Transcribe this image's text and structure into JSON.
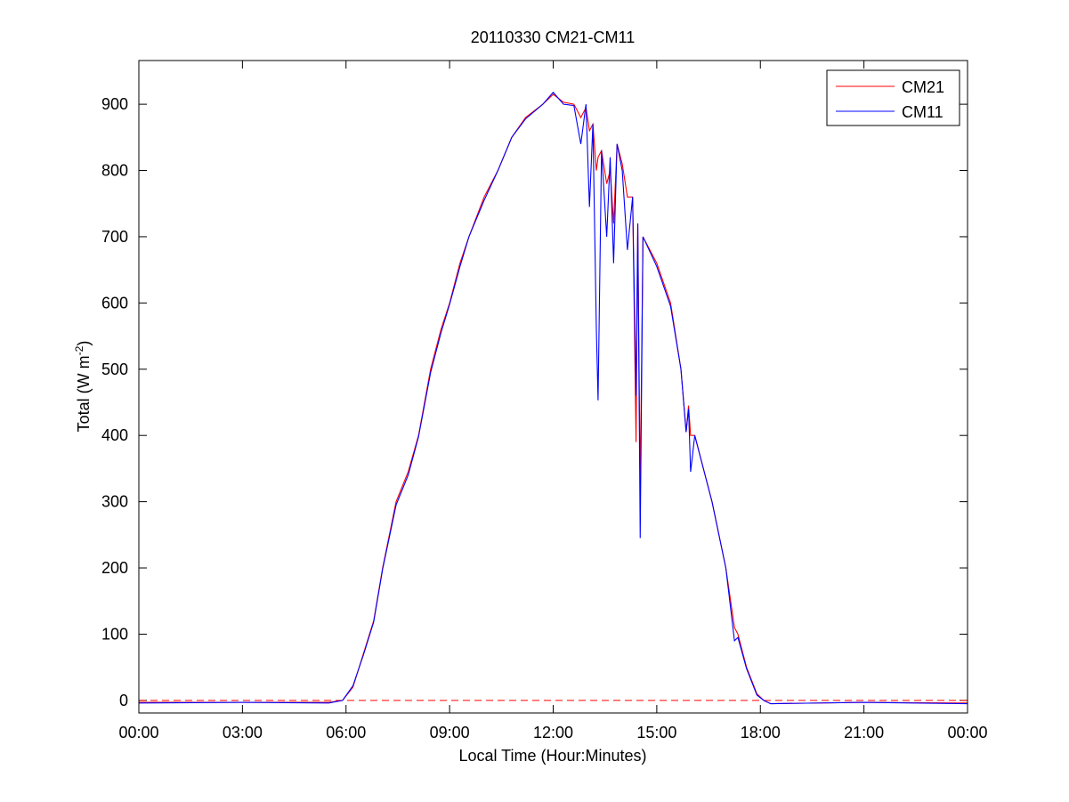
{
  "chart_data": {
    "type": "line",
    "title": "20110330 CM21-CM11",
    "xlabel": "Local Time (Hour:Minutes)",
    "ylabel": "Total (W m",
    "ylabel_superscript": "-2",
    "ylabel_end": ")",
    "x": [
      0,
      3,
      5.5,
      5.9,
      6.2,
      6.5,
      6.8,
      7.06,
      7.45,
      7.8,
      8.1,
      8.45,
      8.75,
      9.0,
      9.3,
      9.56,
      10.0,
      10.4,
      10.8,
      11.2,
      11.7,
      12.0,
      12.3,
      12.6,
      12.8,
      12.95,
      13.05,
      13.15,
      13.25,
      13.3,
      13.4,
      13.55,
      13.65,
      13.75,
      13.85,
      14.0,
      14.15,
      14.3,
      14.4,
      14.45,
      14.52,
      14.6,
      15.0,
      15.4,
      15.7,
      15.85,
      15.92,
      15.98,
      16.1,
      16.6,
      17.0,
      17.25,
      17.35,
      17.6,
      17.9,
      18.1,
      18.3,
      21,
      24
    ],
    "series": [
      {
        "name": "CM21",
        "color": "#ff0000",
        "values": [
          -3,
          -3,
          -3,
          0,
          20,
          70,
          120,
          200,
          300,
          345,
          400,
          500,
          560,
          600,
          660,
          700,
          760,
          800,
          850,
          880,
          900,
          915,
          903,
          900,
          880,
          895,
          860,
          870,
          800,
          820,
          830,
          780,
          800,
          720,
          840,
          810,
          760,
          760,
          390,
          720,
          320,
          700,
          660,
          600,
          500,
          405,
          445,
          400,
          400,
          300,
          200,
          110,
          100,
          50,
          10,
          0,
          -5,
          -3,
          -4
        ]
      },
      {
        "name": "CM11",
        "color": "#0000ff",
        "values": [
          -4,
          -3,
          -4,
          0,
          22,
          68,
          118,
          198,
          295,
          340,
          398,
          495,
          555,
          598,
          655,
          700,
          755,
          800,
          850,
          878,
          900,
          918,
          900,
          898,
          840,
          900,
          745,
          870,
          560,
          453,
          830,
          700,
          820,
          660,
          840,
          800,
          680,
          760,
          460,
          720,
          245,
          700,
          655,
          595,
          500,
          405,
          440,
          345,
          400,
          300,
          200,
          90,
          95,
          48,
          8,
          0,
          -5,
          -3,
          -5
        ]
      }
    ],
    "hline": {
      "value": 0,
      "color": "#ff0000",
      "style": "dashed"
    },
    "xlim": [
      0,
      24
    ],
    "xticks": [
      {
        "value": 0,
        "label": "00:00"
      },
      {
        "value": 3,
        "label": "03:00"
      },
      {
        "value": 6,
        "label": "06:00"
      },
      {
        "value": 9,
        "label": "09:00"
      },
      {
        "value": 12,
        "label": "12:00"
      },
      {
        "value": 15,
        "label": "15:00"
      },
      {
        "value": 18,
        "label": "18:00"
      },
      {
        "value": 21,
        "label": "21:00"
      },
      {
        "value": 24,
        "label": "00:00"
      }
    ],
    "ylim": [
      -19,
      966
    ],
    "yticks": [
      0,
      100,
      200,
      300,
      400,
      500,
      600,
      700,
      800,
      900
    ],
    "grid": false,
    "legend": "top-right"
  }
}
